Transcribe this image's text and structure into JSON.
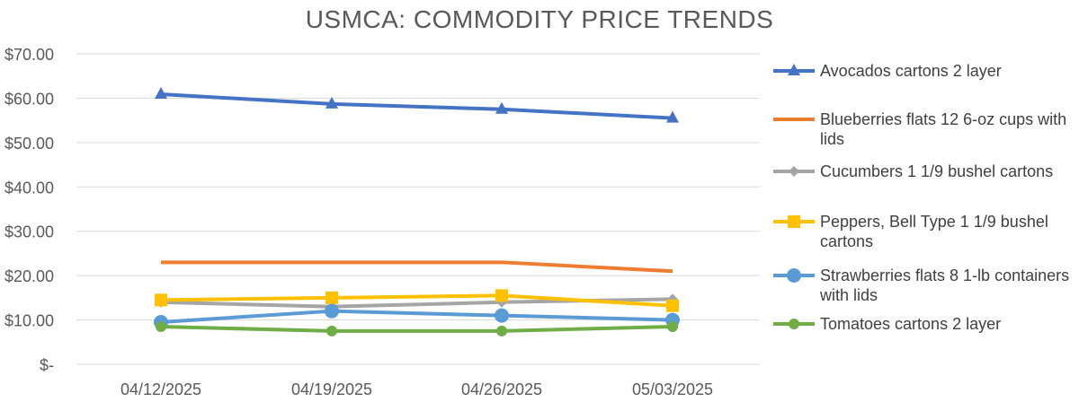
{
  "chart_data": {
    "type": "line",
    "title": "USMCA: COMMODITY PRICE TRENDS",
    "xlabel": "",
    "ylabel": "",
    "ylim": [
      0,
      70
    ],
    "yticks": [
      "$-",
      "$10.00",
      "$20.00",
      "$30.00",
      "$40.00",
      "$50.00",
      "$60.00",
      "$70.00"
    ],
    "grid": true,
    "legend_position": "right",
    "categories": [
      "04/12/2025",
      "04/19/2025",
      "04/26/2025",
      "05/03/2025"
    ],
    "series": [
      {
        "name": "Avocados cartons 2 layer",
        "color": "#4472c4",
        "marker": "triangle",
        "values": [
          60.9,
          58.7,
          57.5,
          55.5
        ]
      },
      {
        "name": "Blueberries flats 12 6-oz cups with lids",
        "color": "#ed7d31",
        "marker": "none",
        "values": [
          23.0,
          23.0,
          23.0,
          21.0
        ]
      },
      {
        "name": "Cucumbers 1 1/9 bushel cartons",
        "color": "#a5a5a5",
        "marker": "diamond",
        "values": [
          14.0,
          13.0,
          14.0,
          14.7
        ]
      },
      {
        "name": "Peppers, Bell Type 1 1/9 bushel cartons",
        "color": "#ffc000",
        "marker": "square",
        "values": [
          14.5,
          15.0,
          15.5,
          13.2
        ]
      },
      {
        "name": "Strawberries flats 8 1-lb containers with lids",
        "color": "#5b9bd5",
        "marker": "circle",
        "values": [
          9.5,
          12.0,
          11.0,
          10.0
        ]
      },
      {
        "name": "Tomatoes cartons 2 layer",
        "color": "#70ad47",
        "marker": "circle-small",
        "values": [
          8.5,
          7.5,
          7.5,
          8.5
        ]
      }
    ]
  }
}
